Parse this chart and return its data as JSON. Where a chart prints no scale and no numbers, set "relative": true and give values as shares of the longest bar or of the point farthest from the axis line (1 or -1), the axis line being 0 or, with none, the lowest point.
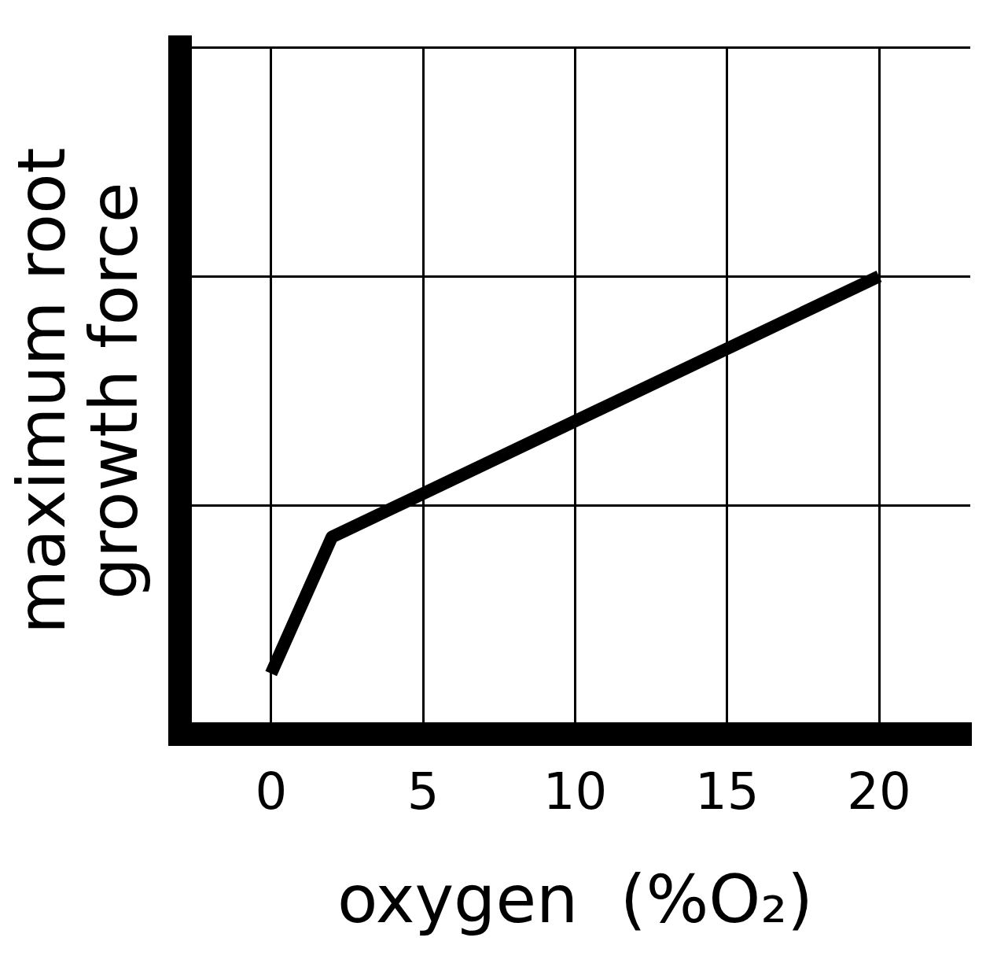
{
  "chart_data": {
    "type": "line",
    "xlabel": "oxygen  (%O₂)",
    "ylabel": "maximum root\ngrowth force",
    "relative": true,
    "x": [
      0,
      2,
      20
    ],
    "series": [
      {
        "color": "#000000",
        "values": [
          0.133,
          0.431,
          1
        ]
      }
    ],
    "xlim": [
      -3,
      23
    ],
    "xticks": [
      0,
      5,
      10,
      15,
      20
    ],
    "grid": true,
    "legend": false,
    "marker": "none",
    "line_style": "solid"
  }
}
